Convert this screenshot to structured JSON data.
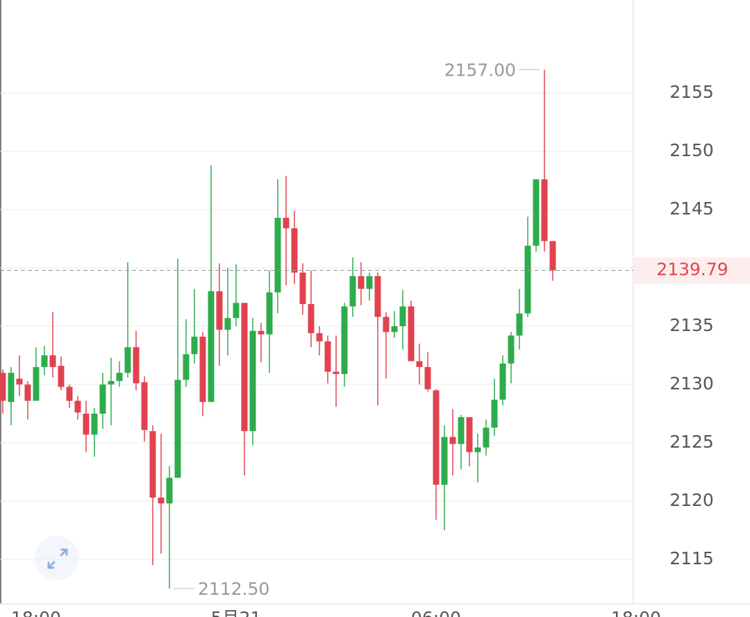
{
  "chart_data": {
    "type": "candlestick",
    "open": [
      2131,
      2128.5,
      2130.5,
      2130,
      2128.6,
      2131.5,
      2132.5,
      2131.6,
      2129.8,
      2128.6,
      2127.5,
      2125.7,
      2127.5,
      2130,
      2130.3,
      2131,
      2133.2,
      2130.2,
      2126,
      2120.3,
      2119.8,
      2122,
      2130.4,
      2132.6,
      2134.1,
      2128.5,
      2138,
      2134.7,
      2135.7,
      2137,
      2126,
      2134.6,
      2134.3,
      2137.9,
      2144.3,
      2143.4,
      2139.6,
      2136.9,
      2134.4,
      2133.7,
      2131.1,
      2130.9,
      2136.7,
      2139.3,
      2138.2,
      2139.3,
      2135.8,
      2134.5,
      2135,
      2136.7,
      2132,
      2131.5,
      2129.5,
      2121.4,
      2125.5,
      2124.9,
      2127.2,
      2124.2,
      2124.6,
      2126.3,
      2128.7,
      2131.8,
      2134.2,
      2136.1,
      2141.9,
      2147.6,
      2142.3
    ],
    "high": [
      2131.3,
      2131.5,
      2132.5,
      2130.3,
      2133.2,
      2133.3,
      2136.2,
      2132.4,
      2130,
      2129,
      2128.6,
      2128,
      2131,
      2132.3,
      2132,
      2140.5,
      2134.6,
      2130.7,
      2126.5,
      2125.8,
      2123,
      2140.8,
      2135.6,
      2138.2,
      2134.5,
      2148.8,
      2140.4,
      2140,
      2140.3,
      2137,
      2135.7,
      2135.3,
      2139.8,
      2147.6,
      2147.9,
      2144.9,
      2140.4,
      2139.8,
      2135,
      2134.2,
      2134.2,
      2137,
      2140.9,
      2140.5,
      2139.6,
      2139.6,
      2136.2,
      2136.3,
      2138.1,
      2137.2,
      2133.5,
      2132.8,
      2129.6,
      2126.5,
      2127.9,
      2127.4,
      2127.2,
      2125.8,
      2127,
      2130.5,
      2132.5,
      2134.5,
      2138.2,
      2144.4,
      2147.6,
      2157,
      2142.3
    ],
    "low": [
      2127.5,
      2126.5,
      2129,
      2127,
      2128.6,
      2130.8,
      2130.6,
      2129.5,
      2128,
      2127,
      2124.2,
      2123.8,
      2126.2,
      2126.5,
      2129.8,
      2130.6,
      2129.5,
      2125.1,
      2114.5,
      2115.5,
      2112.5,
      2122,
      2129.8,
      2131.8,
      2127.3,
      2128.5,
      2131.6,
      2132.5,
      2135,
      2122.2,
      2124.8,
      2131.9,
      2131,
      2136.1,
      2138.5,
      2138.6,
      2136,
      2133.2,
      2132.5,
      2130.1,
      2128.1,
      2129.8,
      2135.8,
      2136.8,
      2137.2,
      2128.2,
      2130.5,
      2134,
      2133,
      2132,
      2130,
      2129.4,
      2118.4,
      2117.5,
      2122.2,
      2122.7,
      2123,
      2121.6,
      2123.9,
      2125.6,
      2128.2,
      2130.1,
      2133,
      2135.8,
      2141.4,
      2141.4,
      2138.9
    ],
    "close": [
      2128.6,
      2131,
      2130,
      2128.6,
      2131.5,
      2132.5,
      2131.5,
      2129.8,
      2128.6,
      2127.6,
      2125.7,
      2127.5,
      2130,
      2130.3,
      2131,
      2133.2,
      2130.1,
      2126.1,
      2120.3,
      2119.8,
      2122,
      2130.4,
      2132.6,
      2134.1,
      2128.5,
      2138,
      2134.7,
      2135.7,
      2137,
      2126,
      2134.6,
      2134.3,
      2137.9,
      2144.3,
      2143.4,
      2139.6,
      2136.9,
      2134.4,
      2133.7,
      2131.1,
      2130.9,
      2136.7,
      2139.3,
      2138.2,
      2139.3,
      2135.8,
      2134.5,
      2135,
      2136.7,
      2132,
      2131.5,
      2129.6,
      2121.4,
      2125.5,
      2124.9,
      2127.2,
      2124.2,
      2124.6,
      2126.3,
      2128.7,
      2131.8,
      2134.2,
      2136.1,
      2141.9,
      2147.6,
      2142.3,
      2139.79
    ],
    "up_color": "#2eac4c",
    "down_color": "#e0434f",
    "ylim": [
      2111.19,
      2162.98
    ],
    "yticks": [
      2115,
      2120,
      2125,
      2130,
      2135,
      2140,
      2145,
      2150,
      2155
    ],
    "xlim": [
      -0.33,
      75.67
    ],
    "xticks": [
      {
        "value": 4,
        "label": "18:00"
      },
      {
        "value": 28,
        "label": "5月21"
      },
      {
        "value": 52,
        "label": "06:00"
      },
      {
        "value": 76,
        "label": "18:00"
      }
    ],
    "grid": true,
    "current_price": 2139.79,
    "annotations": [
      {
        "value": 2157,
        "label": "2157.00"
      },
      {
        "value": 2112.5,
        "label": "2112.50"
      }
    ]
  }
}
